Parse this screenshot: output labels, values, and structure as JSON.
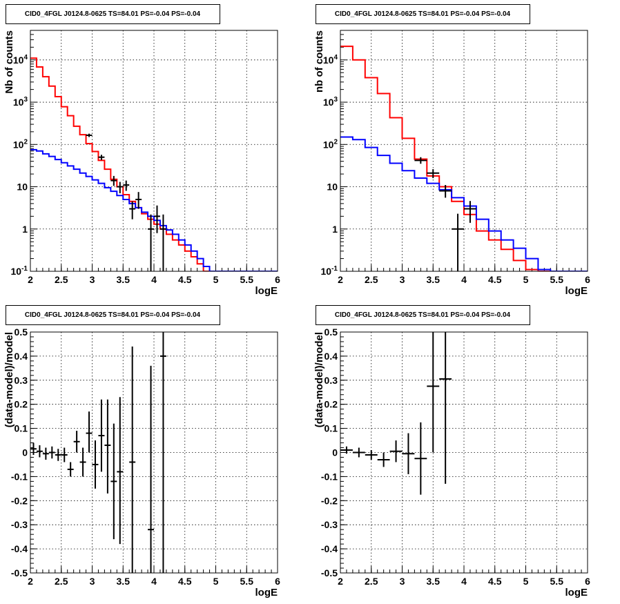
{
  "chart_data": [
    {
      "type": "line",
      "title": "CID0_4FGL J0124.8-0625 TS=84.01 PS=-0.04 PS=-0.04",
      "xlabel": "logE",
      "ylabel": "Nb of counts",
      "xlim": [
        2,
        6
      ],
      "ylim": [
        0.1,
        50000
      ],
      "yscale": "log",
      "grid": true,
      "x_ticks": [
        "2",
        "2.5",
        "3",
        "3.5",
        "4",
        "4.5",
        "5",
        "5.5",
        "6"
      ],
      "y_ticks": [
        {
          "v": 0.1,
          "base": "10",
          "exp": "-1"
        },
        {
          "v": 1,
          "label": "1"
        },
        {
          "v": 10,
          "label": "10"
        },
        {
          "v": 100,
          "base": "10",
          "exp": "2"
        },
        {
          "v": 1000,
          "base": "10",
          "exp": "3"
        },
        {
          "v": 10000,
          "base": "10",
          "exp": "4"
        }
      ],
      "bin_edges": [
        2.0,
        2.1,
        2.2,
        2.3,
        2.4,
        2.5,
        2.6,
        2.7,
        2.8,
        2.9,
        3.0,
        3.1,
        3.2,
        3.3,
        3.4,
        3.5,
        3.6,
        3.7,
        3.8,
        3.9,
        4.0,
        4.1,
        4.2,
        4.3,
        4.4,
        4.5,
        4.6,
        4.7,
        4.8,
        4.9,
        5.0,
        5.1,
        5.2,
        5.3,
        5.4,
        5.5,
        5.6,
        5.7,
        5.8,
        5.9,
        6.0
      ],
      "series": [
        {
          "color": "#ff0000",
          "values": [
            11000,
            6800,
            4000,
            2400,
            1350,
            780,
            480,
            270,
            170,
            105,
            68,
            42,
            26,
            15,
            10,
            6.5,
            4.5,
            3.2,
            2.3,
            1.7,
            1.3,
            1.0,
            0.75,
            0.55,
            0.42,
            0.3,
            0.22,
            0.15,
            0.1,
            0.1,
            0.1,
            0.1,
            0.1,
            0.1,
            0.1,
            0.1,
            0.1,
            0.1,
            0.1,
            0.1
          ]
        },
        {
          "color": "#0000ff",
          "values": [
            75,
            70,
            60,
            52,
            44,
            37,
            31,
            26,
            21,
            17.5,
            14.5,
            12,
            9.5,
            7.8,
            6.2,
            5,
            4,
            3.2,
            2.5,
            2.0,
            1.6,
            1.2,
            0.95,
            0.75,
            0.55,
            0.42,
            0.3,
            0.2,
            0.13,
            0.1,
            0.1,
            0.1,
            0.1,
            0.1,
            0.1,
            0.1,
            0.1,
            0.1,
            0.1,
            0.1
          ]
        }
      ],
      "points": [
        {
          "x": 2.95,
          "y": 165,
          "xerr": 0.05,
          "ylo": 150,
          "yhi": 180
        },
        {
          "x": 3.15,
          "y": 50,
          "xerr": 0.05,
          "ylo": 43,
          "yhi": 57
        },
        {
          "x": 3.35,
          "y": 14,
          "xerr": 0.05,
          "ylo": 10.5,
          "yhi": 18
        },
        {
          "x": 3.45,
          "y": 10,
          "xerr": 0.05,
          "ylo": 7,
          "yhi": 13
        },
        {
          "x": 3.55,
          "y": 11,
          "xerr": 0.05,
          "ylo": 8,
          "yhi": 14
        },
        {
          "x": 3.65,
          "y": 3,
          "xerr": 0.05,
          "ylo": 1.7,
          "yhi": 4.5
        },
        {
          "x": 3.75,
          "y": 5,
          "xerr": 0.05,
          "ylo": 3,
          "yhi": 7.5
        },
        {
          "x": 3.95,
          "y": 1,
          "xerr": 0.05,
          "ylo": 0.1,
          "yhi": 2.2
        },
        {
          "x": 4.05,
          "y": 2,
          "xerr": 0.05,
          "ylo": 0.8,
          "yhi": 3.6
        },
        {
          "x": 4.15,
          "y": 1,
          "xerr": 0.05,
          "ylo": 0.1,
          "yhi": 2.2
        }
      ]
    },
    {
      "type": "line",
      "title": "CID0_4FGL J0124.8-0625 TS=84.01 PS=-0.04 PS=-0.04",
      "xlabel": "logE",
      "ylabel": "nb of counts",
      "xlim": [
        2,
        6
      ],
      "ylim": [
        0.1,
        50000
      ],
      "yscale": "log",
      "grid": true,
      "x_ticks": [
        "2",
        "2.5",
        "3",
        "3.5",
        "4",
        "4.5",
        "5",
        "5.5",
        "6"
      ],
      "y_ticks": [
        {
          "v": 0.1,
          "base": "10",
          "exp": "-1"
        },
        {
          "v": 1,
          "label": "1"
        },
        {
          "v": 10,
          "label": "10"
        },
        {
          "v": 100,
          "base": "10",
          "exp": "2"
        },
        {
          "v": 1000,
          "base": "10",
          "exp": "3"
        },
        {
          "v": 10000,
          "base": "10",
          "exp": "4"
        }
      ],
      "bin_edges": [
        2.0,
        2.2,
        2.4,
        2.6,
        2.8,
        3.0,
        3.2,
        3.4,
        3.6,
        3.8,
        4.0,
        4.2,
        4.4,
        4.6,
        4.8,
        5.0,
        5.2,
        5.4,
        5.6,
        5.8,
        6.0
      ],
      "series": [
        {
          "color": "#ff0000",
          "values": [
            21000,
            10000,
            3800,
            1600,
            430,
            140,
            45,
            18,
            10,
            4.5,
            2.2,
            0.9,
            0.55,
            0.33,
            0.18,
            0.11,
            0.1,
            0.1,
            0.1,
            0.1
          ]
        },
        {
          "color": "#0000ff",
          "values": [
            150,
            130,
            85,
            55,
            36,
            24,
            16,
            12,
            8.5,
            5.5,
            3.5,
            1.7,
            0.9,
            0.55,
            0.35,
            0.2,
            0.11,
            0.1,
            0.1,
            0.1
          ]
        }
      ],
      "points": [
        {
          "x": 3.3,
          "y": 42,
          "xerr": 0.1,
          "ylo": 35,
          "yhi": 50
        },
        {
          "x": 3.5,
          "y": 21,
          "xerr": 0.1,
          "ylo": 16,
          "yhi": 26
        },
        {
          "x": 3.7,
          "y": 8,
          "xerr": 0.1,
          "ylo": 5.5,
          "yhi": 11
        },
        {
          "x": 3.9,
          "y": 1,
          "xerr": 0.1,
          "ylo": 0.1,
          "yhi": 2.3
        },
        {
          "x": 4.1,
          "y": 3,
          "xerr": 0.1,
          "ylo": 1.4,
          "yhi": 4.6
        }
      ]
    },
    {
      "type": "scatter",
      "title": "CID0_4FGL J0124.8-0625 TS=84.01 PS=-0.04 PS=-0.04",
      "xlabel": "logE",
      "ylabel": "(data-model)/model",
      "xlim": [
        2,
        6
      ],
      "ylim": [
        -0.5,
        0.5
      ],
      "grid": true,
      "x_ticks": [
        "2",
        "2.5",
        "3",
        "3.5",
        "4",
        "4.5",
        "5",
        "5.5",
        "6"
      ],
      "y_ticks": [
        "-0.5",
        "-0.4",
        "-0.3",
        "-0.2",
        "-0.1",
        "0",
        "0.1",
        "0.2",
        "0.3",
        "0.4",
        "0.5"
      ],
      "points": [
        {
          "x": 2.05,
          "y": 0.015,
          "xerr": 0.05,
          "ylo": -0.01,
          "yhi": 0.04
        },
        {
          "x": 2.15,
          "y": 0.005,
          "xerr": 0.05,
          "ylo": -0.02,
          "yhi": 0.03
        },
        {
          "x": 2.25,
          "y": -0.005,
          "xerr": 0.05,
          "ylo": -0.03,
          "yhi": 0.02
        },
        {
          "x": 2.35,
          "y": 0.0,
          "xerr": 0.05,
          "ylo": -0.025,
          "yhi": 0.025
        },
        {
          "x": 2.45,
          "y": -0.01,
          "xerr": 0.05,
          "ylo": -0.035,
          "yhi": 0.015
        },
        {
          "x": 2.55,
          "y": -0.01,
          "xerr": 0.05,
          "ylo": -0.04,
          "yhi": 0.02
        },
        {
          "x": 2.65,
          "y": -0.07,
          "xerr": 0.05,
          "ylo": -0.1,
          "yhi": -0.04
        },
        {
          "x": 2.75,
          "y": 0.045,
          "xerr": 0.05,
          "ylo": 0.0,
          "yhi": 0.09
        },
        {
          "x": 2.85,
          "y": -0.04,
          "xerr": 0.05,
          "ylo": -0.1,
          "yhi": 0.02
        },
        {
          "x": 2.95,
          "y": 0.08,
          "xerr": 0.05,
          "ylo": 0.0,
          "yhi": 0.17
        },
        {
          "x": 3.05,
          "y": -0.05,
          "xerr": 0.05,
          "ylo": -0.15,
          "yhi": 0.05
        },
        {
          "x": 3.15,
          "y": 0.07,
          "xerr": 0.05,
          "ylo": -0.08,
          "yhi": 0.22
        },
        {
          "x": 3.25,
          "y": 0.03,
          "xerr": 0.05,
          "ylo": -0.17,
          "yhi": 0.22
        },
        {
          "x": 3.35,
          "y": -0.12,
          "xerr": 0.05,
          "ylo": -0.36,
          "yhi": 0.12
        },
        {
          "x": 3.45,
          "y": -0.08,
          "xerr": 0.05,
          "ylo": -0.38,
          "yhi": 0.23
        },
        {
          "x": 3.65,
          "y": -0.04,
          "xerr": 0.05,
          "ylo": -0.5,
          "yhi": 0.44
        },
        {
          "x": 3.95,
          "y": -0.32,
          "xerr": 0.05,
          "ylo": -0.5,
          "yhi": 0.36
        },
        {
          "x": 4.15,
          "y": 0.4,
          "xerr": 0.05,
          "ylo": -0.5,
          "yhi": 0.5
        }
      ]
    },
    {
      "type": "scatter",
      "title": "CID0_4FGL J0124.8-0625 TS=84.01 PS=-0.04 PS=-0.04",
      "xlabel": "logE",
      "ylabel": "(data-model)/model",
      "xlim": [
        2,
        6
      ],
      "ylim": [
        -0.5,
        0.5
      ],
      "grid": true,
      "x_ticks": [
        "2",
        "2.5",
        "3",
        "3.5",
        "4",
        "4.5",
        "5",
        "5.5",
        "6"
      ],
      "y_ticks": [
        "-0.5",
        "-0.4",
        "-0.3",
        "-0.2",
        "-0.1",
        "0",
        "0.1",
        "0.2",
        "0.3",
        "0.4",
        "0.5"
      ],
      "points": [
        {
          "x": 2.1,
          "y": 0.01,
          "xerr": 0.1,
          "ylo": -0.005,
          "yhi": 0.025
        },
        {
          "x": 2.3,
          "y": 0.0,
          "xerr": 0.1,
          "ylo": -0.02,
          "yhi": 0.02
        },
        {
          "x": 2.5,
          "y": -0.01,
          "xerr": 0.1,
          "ylo": -0.03,
          "yhi": 0.01
        },
        {
          "x": 2.7,
          "y": -0.03,
          "xerr": 0.1,
          "ylo": -0.06,
          "yhi": 0.0
        },
        {
          "x": 2.9,
          "y": 0.005,
          "xerr": 0.1,
          "ylo": -0.04,
          "yhi": 0.05
        },
        {
          "x": 3.1,
          "y": -0.005,
          "xerr": 0.1,
          "ylo": -0.09,
          "yhi": 0.08
        },
        {
          "x": 3.3,
          "y": -0.025,
          "xerr": 0.1,
          "ylo": -0.175,
          "yhi": 0.125
        },
        {
          "x": 3.5,
          "y": 0.275,
          "xerr": 0.1,
          "ylo": 0.0,
          "yhi": 0.5
        },
        {
          "x": 3.7,
          "y": 0.305,
          "xerr": 0.1,
          "ylo": -0.13,
          "yhi": 0.5
        }
      ]
    }
  ]
}
